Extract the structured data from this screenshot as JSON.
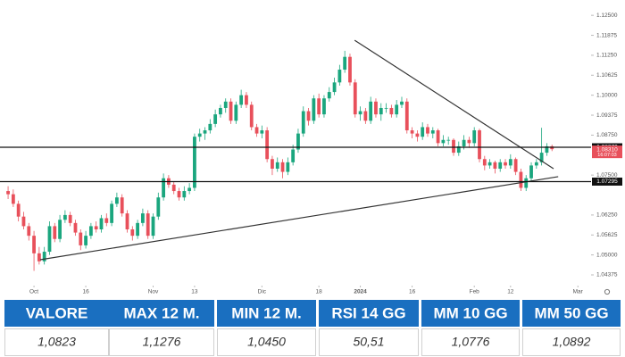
{
  "chart_data": {
    "type": "candlestick",
    "up_color": "#1aa67e",
    "down_color": "#e8505b",
    "xlim": [
      -0.7,
      112.2
    ],
    "ylim": [
      1.0404,
      1.1284
    ],
    "xticks": [
      {
        "value": 5,
        "label": "Oct"
      },
      {
        "value": 15,
        "label": "16"
      },
      {
        "value": 28,
        "label": "Nov"
      },
      {
        "value": 36,
        "label": "13"
      },
      {
        "value": 49,
        "label": "Dic"
      },
      {
        "value": 60,
        "label": "18"
      },
      {
        "value": 68,
        "label": "2024"
      },
      {
        "value": 78,
        "label": "16"
      },
      {
        "value": 90,
        "label": "Feb"
      },
      {
        "value": 97,
        "label": "12"
      },
      {
        "value": 110,
        "label": "Mar"
      }
    ],
    "yticks": [
      {
        "value": 1.04375,
        "label": "1.04375"
      },
      {
        "value": 1.05,
        "label": "1.05000"
      },
      {
        "value": 1.05625,
        "label": "1.05625"
      },
      {
        "value": 1.0625,
        "label": "1.06250"
      },
      {
        "value": 1.075,
        "label": "1.07500"
      },
      {
        "value": 1.0875,
        "label": "1.08750"
      },
      {
        "value": 1.09375,
        "label": "1.09375"
      },
      {
        "value": 1.1,
        "label": "1.10000"
      },
      {
        "value": 1.10625,
        "label": "1.10625"
      },
      {
        "value": 1.1125,
        "label": "1.11250"
      },
      {
        "value": 1.11875,
        "label": "1.11875"
      },
      {
        "value": 1.125,
        "label": "1.12500"
      }
    ],
    "levels": [
      {
        "value": 1.0837,
        "label": "1.08370"
      },
      {
        "value": 1.07295,
        "label": "1.07295"
      }
    ],
    "current_price": {
      "value": 1.0831,
      "label": "1.08310",
      "countdown": "16:07:03",
      "color": "#e8505b"
    },
    "trendlines": [
      {
        "x": [
          66.9,
          105.3
        ],
        "y": [
          1.1172,
          1.077
        ],
        "color": "#333333"
      },
      {
        "x": [
          6.2,
          106.2
        ],
        "y": [
          1.0485,
          1.0745
        ],
        "color": "#333333"
      }
    ],
    "ohlc": [
      [
        1.07,
        1.0715,
        1.0675,
        1.069
      ],
      [
        1.069,
        1.0705,
        1.065,
        1.066
      ],
      [
        1.066,
        1.067,
        1.0605,
        1.062
      ],
      [
        1.062,
        1.0635,
        1.058,
        1.059
      ],
      [
        1.059,
        1.06,
        1.0545,
        1.056
      ],
      [
        1.056,
        1.0575,
        1.045,
        1.0505
      ],
      [
        1.0505,
        1.0525,
        1.047,
        1.048
      ],
      [
        1.048,
        1.0525,
        1.047,
        1.051
      ],
      [
        1.051,
        1.0605,
        1.05,
        1.059
      ],
      [
        1.059,
        1.06,
        1.054,
        1.055
      ],
      [
        1.055,
        1.0625,
        1.054,
        1.061
      ],
      [
        1.061,
        1.064,
        1.06,
        1.0625
      ],
      [
        1.0625,
        1.0635,
        1.059,
        1.06
      ],
      [
        1.06,
        1.061,
        1.056,
        1.057
      ],
      [
        1.057,
        1.058,
        1.0515,
        1.053
      ],
      [
        1.053,
        1.0575,
        1.052,
        1.056
      ],
      [
        1.056,
        1.06,
        1.055,
        1.059
      ],
      [
        1.059,
        1.0605,
        1.057,
        1.058
      ],
      [
        1.058,
        1.0625,
        1.057,
        1.0615
      ],
      [
        1.0615,
        1.063,
        1.059,
        1.06
      ],
      [
        1.06,
        1.067,
        1.059,
        1.066
      ],
      [
        1.066,
        1.0695,
        1.065,
        1.068
      ],
      [
        1.068,
        1.069,
        1.062,
        1.063
      ],
      [
        1.063,
        1.064,
        1.057,
        1.058
      ],
      [
        1.058,
        1.059,
        1.0545,
        1.056
      ],
      [
        1.056,
        1.061,
        1.055,
        1.06
      ],
      [
        1.06,
        1.0645,
        1.059,
        1.063
      ],
      [
        1.063,
        1.064,
        1.055,
        1.056
      ],
      [
        1.056,
        1.063,
        1.055,
        1.062
      ],
      [
        1.062,
        1.0695,
        1.061,
        1.068
      ],
      [
        1.068,
        1.0755,
        1.067,
        1.074
      ],
      [
        1.074,
        1.075,
        1.071,
        1.072
      ],
      [
        1.072,
        1.073,
        1.069,
        1.07
      ],
      [
        1.07,
        1.071,
        1.067,
        1.068
      ],
      [
        1.068,
        1.0715,
        1.067,
        1.07
      ],
      [
        1.07,
        1.0725,
        1.069,
        1.071
      ],
      [
        1.071,
        1.088,
        1.07,
        1.087
      ],
      [
        1.087,
        1.0895,
        1.0855,
        1.088
      ],
      [
        1.088,
        1.09,
        1.086,
        1.089
      ],
      [
        1.089,
        1.0925,
        1.088,
        1.091
      ],
      [
        1.091,
        1.0955,
        1.09,
        1.094
      ],
      [
        1.094,
        1.097,
        1.093,
        1.096
      ],
      [
        1.096,
        1.099,
        1.0945,
        1.098
      ],
      [
        1.098,
        1.099,
        1.091,
        1.092
      ],
      [
        1.092,
        1.098,
        1.091,
        1.097
      ],
      [
        1.097,
        1.1017,
        1.096,
        1.1
      ],
      [
        1.1,
        1.101,
        1.096,
        1.097
      ],
      [
        1.097,
        1.098,
        1.089,
        1.09
      ],
      [
        1.09,
        1.091,
        1.087,
        1.088
      ],
      [
        1.088,
        1.0905,
        1.0865,
        1.089
      ],
      [
        1.089,
        1.09,
        1.079,
        1.08
      ],
      [
        1.08,
        1.081,
        1.075,
        1.077
      ],
      [
        1.077,
        1.0805,
        1.076,
        1.079
      ],
      [
        1.079,
        1.08,
        1.074,
        1.076
      ],
      [
        1.076,
        1.0805,
        1.075,
        1.079
      ],
      [
        1.079,
        1.0845,
        1.078,
        1.083
      ],
      [
        1.083,
        1.0895,
        1.082,
        1.088
      ],
      [
        1.088,
        1.0965,
        1.087,
        1.095
      ],
      [
        1.095,
        1.096,
        1.0905,
        1.092
      ],
      [
        1.092,
        1.1,
        1.091,
        1.099
      ],
      [
        1.099,
        1.1005,
        1.093,
        1.094
      ],
      [
        1.094,
        1.1,
        1.093,
        1.099
      ],
      [
        1.099,
        1.1025,
        1.098,
        1.101
      ],
      [
        1.101,
        1.1055,
        1.1,
        1.104
      ],
      [
        1.104,
        1.1095,
        1.103,
        1.108
      ],
      [
        1.108,
        1.1139,
        1.107,
        1.112
      ],
      [
        1.112,
        1.113,
        1.103,
        1.104
      ],
      [
        1.104,
        1.105,
        1.093,
        1.094
      ],
      [
        1.094,
        1.0965,
        1.092,
        1.095
      ],
      [
        1.095,
        1.096,
        1.091,
        1.092
      ],
      [
        1.092,
        1.0995,
        1.091,
        1.098
      ],
      [
        1.098,
        1.099,
        1.093,
        1.094
      ],
      [
        1.094,
        1.0975,
        1.092,
        1.096
      ],
      [
        1.096,
        1.0975,
        1.0945,
        1.096
      ],
      [
        1.096,
        1.097,
        1.093,
        1.094
      ],
      [
        1.094,
        1.0985,
        1.093,
        1.097
      ],
      [
        1.097,
        1.0995,
        1.096,
        1.098
      ],
      [
        1.098,
        1.099,
        1.088,
        1.089
      ],
      [
        1.089,
        1.09,
        1.0865,
        1.088
      ],
      [
        1.088,
        1.089,
        1.0855,
        1.087
      ],
      [
        1.087,
        1.0915,
        1.086,
        1.09
      ],
      [
        1.09,
        1.091,
        1.087,
        1.088
      ],
      [
        1.088,
        1.09,
        1.0865,
        1.089
      ],
      [
        1.089,
        1.0895,
        1.084,
        1.085
      ],
      [
        1.085,
        1.0875,
        1.084,
        1.086
      ],
      [
        1.086,
        1.087,
        1.0845,
        1.086
      ],
      [
        1.086,
        1.0865,
        1.081,
        1.082
      ],
      [
        1.082,
        1.0855,
        1.081,
        1.084
      ],
      [
        1.084,
        1.0875,
        1.083,
        1.086
      ],
      [
        1.086,
        1.087,
        1.0835,
        1.085
      ],
      [
        1.085,
        1.09,
        1.084,
        1.089
      ],
      [
        1.089,
        1.0895,
        1.079,
        1.08
      ],
      [
        1.08,
        1.081,
        1.0765,
        1.078
      ],
      [
        1.078,
        1.08,
        1.077,
        1.079
      ],
      [
        1.079,
        1.0795,
        1.0755,
        1.077
      ],
      [
        1.077,
        1.08,
        1.076,
        1.079
      ],
      [
        1.079,
        1.08,
        1.077,
        1.078
      ],
      [
        1.078,
        1.0815,
        1.077,
        1.08
      ],
      [
        1.08,
        1.0805,
        1.075,
        1.076
      ],
      [
        1.076,
        1.077,
        1.07,
        1.071
      ],
      [
        1.071,
        1.075,
        1.07,
        1.074
      ],
      [
        1.074,
        1.079,
        1.073,
        1.078
      ],
      [
        1.078,
        1.08,
        1.077,
        1.079
      ],
      [
        1.079,
        1.0898,
        1.078,
        1.082
      ],
      [
        1.082,
        1.085,
        1.081,
        1.084
      ],
      [
        1.084,
        1.0845,
        1.0825,
        1.0831
      ]
    ]
  },
  "table": {
    "header_color": "#1a6fc0",
    "headers": [
      "VALORE",
      "MAX 12 M.",
      "MIN 12 M.",
      "RSI 14 GG",
      "MM 10 GG",
      "MM 50 GG"
    ],
    "rows": [
      [
        "1,0823",
        "1,1276",
        "1,0450",
        "50,51",
        "1,0776",
        "1,0892"
      ]
    ]
  }
}
